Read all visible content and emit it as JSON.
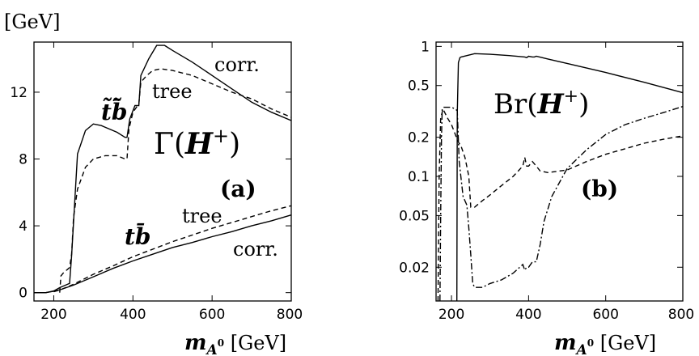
{
  "chart_data": [
    {
      "type": "line",
      "panel_label": "(a)",
      "title_text": "Γ(H⁺)",
      "xlabel": "m_A⁰ [GeV]",
      "ylabel": "[GeV]",
      "xlim": [
        150,
        800
      ],
      "ylim": [
        -0.5,
        15
      ],
      "xscale": "linear",
      "yscale": "linear",
      "xticks": [
        200,
        400,
        600,
        800
      ],
      "yticks": [
        0,
        4,
        8,
        12
      ],
      "annotations": {
        "stb_corr": "corr.",
        "stb_tree": "tree",
        "stb_channel": "t̃b̄̃",
        "tb_tree": "tree",
        "tb_corr": "corr.",
        "tb_channel": "tb̄"
      },
      "series": [
        {
          "style": "solid",
          "x": [
            150,
            180,
            200,
            215,
            230,
            240,
            245,
            260,
            280,
            300,
            320,
            340,
            360,
            380,
            385,
            392,
            405,
            415,
            420,
            440,
            460,
            480,
            500,
            550,
            600,
            650,
            700,
            750,
            800
          ],
          "y": [
            0,
            0,
            0.1,
            0.3,
            0.45,
            0.55,
            2.2,
            8.3,
            9.7,
            10.1,
            10.0,
            9.8,
            9.6,
            9.3,
            9.3,
            10.4,
            11.2,
            11.2,
            13.0,
            14.0,
            14.8,
            14.8,
            14.5,
            13.8,
            13.0,
            12.2,
            11.4,
            10.8,
            10.3
          ]
        },
        {
          "style": "dashed",
          "x": [
            215,
            218,
            225,
            235,
            240,
            245,
            250,
            260,
            280,
            300,
            330,
            360,
            380,
            385,
            390,
            400,
            415,
            420,
            435,
            450,
            470,
            500,
            550,
            600,
            650,
            700,
            750,
            800
          ],
          "y": [
            0,
            1,
            1.2,
            1.4,
            1.5,
            2.3,
            4.5,
            6.2,
            7.5,
            8.0,
            8.2,
            8.2,
            8.0,
            8.0,
            9.8,
            10.8,
            11.3,
            12.6,
            13.0,
            13.3,
            13.4,
            13.3,
            13.0,
            12.5,
            12.0,
            11.6,
            11.0,
            10.5
          ]
        },
        {
          "style": "solid",
          "x": [
            150,
            180,
            200,
            220,
            250,
            300,
            350,
            400,
            450,
            500,
            550,
            600,
            650,
            700,
            750,
            800
          ],
          "y": [
            0,
            0,
            0.08,
            0.2,
            0.45,
            0.95,
            1.45,
            1.9,
            2.3,
            2.7,
            3.0,
            3.35,
            3.65,
            4.0,
            4.3,
            4.65
          ]
        },
        {
          "style": "dashed",
          "x": [
            200,
            220,
            250,
            300,
            350,
            400,
            450,
            500,
            550,
            600,
            650,
            700,
            750,
            800
          ],
          "y": [
            0.05,
            0.2,
            0.5,
            1.1,
            1.6,
            2.15,
            2.6,
            3.05,
            3.45,
            3.85,
            4.2,
            4.55,
            4.9,
            5.2
          ]
        }
      ]
    },
    {
      "type": "line",
      "panel_label": "(b)",
      "title_text": "Br(H⁺)",
      "xlabel": "m_A⁰ [GeV]",
      "xlim": [
        160,
        800
      ],
      "ylim": [
        0.011,
        1.08
      ],
      "xscale": "linear",
      "yscale": "log",
      "xticks": [
        200,
        400,
        600,
        800
      ],
      "yticks": [
        0.02,
        0.05,
        0.1,
        0.2,
        0.5,
        1
      ],
      "ytick_labels": [
        "0.02",
        "0.05",
        "0.1",
        "0.2",
        "0.5",
        "1"
      ],
      "series": [
        {
          "style": "solid",
          "x": [
            214,
            215,
            218,
            222,
            225,
            240,
            260,
            300,
            350,
            390,
            395,
            400,
            410,
            415,
            420,
            450,
            500,
            600,
            700,
            800
          ],
          "y": [
            0.011,
            0.3,
            0.75,
            0.82,
            0.83,
            0.85,
            0.88,
            0.87,
            0.85,
            0.83,
            0.82,
            0.84,
            0.83,
            0.83,
            0.84,
            0.8,
            0.74,
            0.63,
            0.53,
            0.44
          ]
        },
        {
          "style": "dashed",
          "x": [
            165,
            168,
            172,
            178,
            185,
            190,
            200,
            210,
            215,
            225,
            235,
            245,
            250,
            260,
            280,
            300,
            330,
            360,
            385,
            390,
            395,
            400,
            410,
            420,
            430,
            450,
            500,
            550,
            600,
            650,
            700,
            750,
            800
          ],
          "y": [
            0.011,
            0.1,
            0.28,
            0.33,
            0.3,
            0.28,
            0.25,
            0.21,
            0.19,
            0.17,
            0.14,
            0.1,
            0.058,
            0.058,
            0.065,
            0.072,
            0.085,
            0.1,
            0.12,
            0.14,
            0.12,
            0.12,
            0.13,
            0.12,
            0.11,
            0.107,
            0.112,
            0.13,
            0.148,
            0.163,
            0.18,
            0.193,
            0.205
          ]
        },
        {
          "style": "dashdot",
          "x": [
            170,
            172,
            174,
            176,
            180,
            190,
            200,
            210,
            215,
            220,
            230,
            240,
            245,
            250,
            255,
            260,
            280,
            300,
            330,
            360,
            385,
            390,
            395,
            400,
            410,
            420,
            430,
            440,
            460,
            500,
            550,
            600,
            650,
            700,
            750,
            800
          ],
          "y": [
            0.011,
            0.05,
            0.2,
            0.33,
            0.34,
            0.34,
            0.34,
            0.33,
            0.32,
            0.13,
            0.07,
            0.06,
            0.04,
            0.025,
            0.015,
            0.014,
            0.014,
            0.015,
            0.016,
            0.018,
            0.021,
            0.019,
            0.02,
            0.02,
            0.022,
            0.022,
            0.03,
            0.045,
            0.07,
            0.115,
            0.16,
            0.21,
            0.25,
            0.28,
            0.31,
            0.345
          ]
        }
      ]
    }
  ]
}
